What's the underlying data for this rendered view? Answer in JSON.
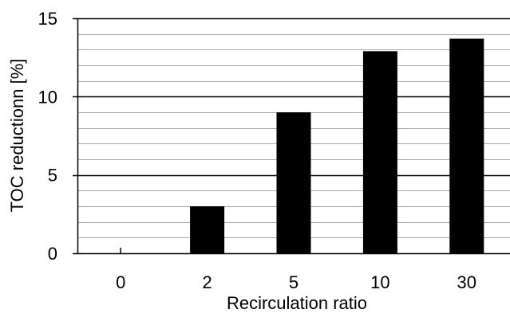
{
  "chart_data": {
    "type": "bar",
    "categories": [
      "0",
      "2",
      "5",
      "10",
      "30"
    ],
    "values": [
      0,
      3,
      9,
      12.9,
      13.7
    ],
    "title": "",
    "xlabel": "Recirculation ratio",
    "ylabel": "TOC reductionn [%]",
    "ylim": [
      0,
      15
    ],
    "y_ticks": [
      "0",
      "5",
      "10",
      "15"
    ],
    "major_step": 5,
    "minor_step": 1,
    "grid": true,
    "legend": "none",
    "bar_color": "#000000",
    "gridline_color": "#a6a6a6",
    "major_gridline_color": "#000000"
  }
}
